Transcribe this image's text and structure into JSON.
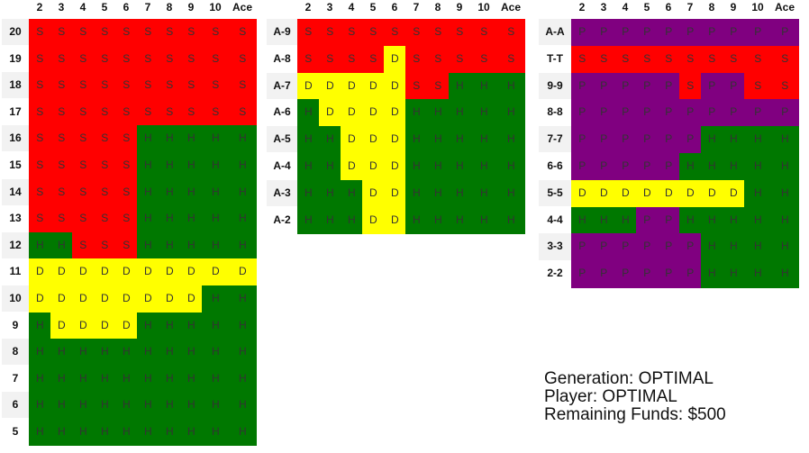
{
  "colors": {
    "S": "#ff0000",
    "H": "#007800",
    "D": "#ffff00",
    "P": "#800080"
  },
  "columns": [
    "2",
    "3",
    "4",
    "5",
    "6",
    "7",
    "8",
    "9",
    "10",
    "Ace"
  ],
  "tables": [
    {
      "name": "hard-totals",
      "rows": [
        {
          "label": "20",
          "cells": "SSSSSSSSSS"
        },
        {
          "label": "19",
          "cells": "SSSSSSSSSS"
        },
        {
          "label": "18",
          "cells": "SSSSSSSSSS"
        },
        {
          "label": "17",
          "cells": "SSSSSSSSSS"
        },
        {
          "label": "16",
          "cells": "SSSSSHHHHH"
        },
        {
          "label": "15",
          "cells": "SSSSSHHHHH"
        },
        {
          "label": "14",
          "cells": "SSSSSHHHHH"
        },
        {
          "label": "13",
          "cells": "SSSSSHHHHH"
        },
        {
          "label": "12",
          "cells": "HHSSSHHHHH"
        },
        {
          "label": "11",
          "cells": "DDDDDDDDDD"
        },
        {
          "label": "10",
          "cells": "DDDDDDDDHH"
        },
        {
          "label": "9",
          "cells": "HDDDDHHHHH"
        },
        {
          "label": "8",
          "cells": "HHHHHHHHHH"
        },
        {
          "label": "7",
          "cells": "HHHHHHHHHH"
        },
        {
          "label": "6",
          "cells": "HHHHHHHHHH"
        },
        {
          "label": "5",
          "cells": "HHHHHHHHHH"
        }
      ]
    },
    {
      "name": "soft-totals",
      "rows": [
        {
          "label": "A-9",
          "cells": "SSSSSSSSSS"
        },
        {
          "label": "A-8",
          "cells": "SSSSDSSSSS"
        },
        {
          "label": "A-7",
          "cells": "DDDDDSSHHH"
        },
        {
          "label": "A-6",
          "cells": "HDDDDHHHHH"
        },
        {
          "label": "A-5",
          "cells": "HHDDDHHHHH"
        },
        {
          "label": "A-4",
          "cells": "HHDDDHHHHH"
        },
        {
          "label": "A-3",
          "cells": "HHHDDHHHHH"
        },
        {
          "label": "A-2",
          "cells": "HHHDDHHHHH"
        }
      ]
    },
    {
      "name": "pairs",
      "rows": [
        {
          "label": "A-A",
          "cells": "PPPPPPPPPP"
        },
        {
          "label": "T-T",
          "cells": "SSSSSSSSSS"
        },
        {
          "label": "9-9",
          "cells": "PPPPPSPPSS"
        },
        {
          "label": "8-8",
          "cells": "PPPPPPPPPP"
        },
        {
          "label": "7-7",
          "cells": "PPPPPPHHHH"
        },
        {
          "label": "6-6",
          "cells": "PPPPPHHHHH"
        },
        {
          "label": "5-5",
          "cells": "DDDDDDDDHH"
        },
        {
          "label": "4-4",
          "cells": "HHHPPHHHHH"
        },
        {
          "label": "3-3",
          "cells": "PPPPPPHHHH"
        },
        {
          "label": "2-2",
          "cells": "PPPPPPHHHH"
        }
      ]
    }
  ],
  "info": {
    "generation": "Generation: OPTIMAL",
    "player": "Player: OPTIMAL",
    "funds": "Remaining Funds: $500"
  }
}
